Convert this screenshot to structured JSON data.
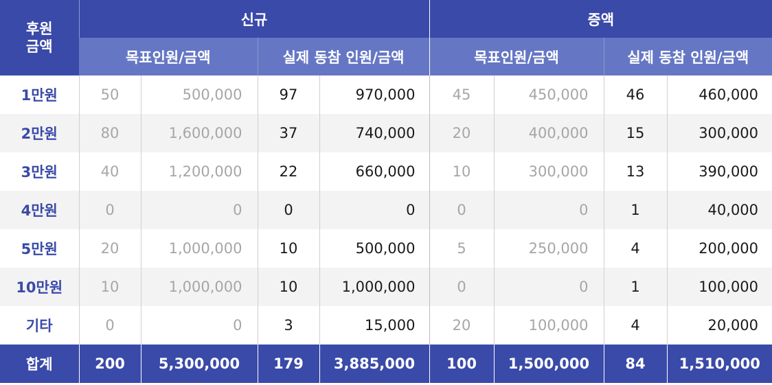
{
  "header": {
    "row_label": "후원\n금액",
    "row_label_line1": "후원",
    "row_label_line2": "금액",
    "group_new": "신규",
    "group_increase": "증액",
    "target_label": "목표인원/금액",
    "actual_label": "실제 동참 인원/금액"
  },
  "rows": [
    {
      "label": "1만원",
      "new_target_count": "50",
      "new_target_amount": "500,000",
      "new_actual_count": "97",
      "new_actual_amount": "970,000",
      "inc_target_count": "45",
      "inc_target_amount": "450,000",
      "inc_actual_count": "46",
      "inc_actual_amount": "460,000"
    },
    {
      "label": "2만원",
      "new_target_count": "80",
      "new_target_amount": "1,600,000",
      "new_actual_count": "37",
      "new_actual_amount": "740,000",
      "inc_target_count": "20",
      "inc_target_amount": "400,000",
      "inc_actual_count": "15",
      "inc_actual_amount": "300,000"
    },
    {
      "label": "3만원",
      "new_target_count": "40",
      "new_target_amount": "1,200,000",
      "new_actual_count": "22",
      "new_actual_amount": "660,000",
      "inc_target_count": "10",
      "inc_target_amount": "300,000",
      "inc_actual_count": "13",
      "inc_actual_amount": "390,000"
    },
    {
      "label": "4만원",
      "new_target_count": "0",
      "new_target_amount": "0",
      "new_actual_count": "0",
      "new_actual_amount": "0",
      "inc_target_count": "0",
      "inc_target_amount": "0",
      "inc_actual_count": "1",
      "inc_actual_amount": "40,000"
    },
    {
      "label": "5만원",
      "new_target_count": "20",
      "new_target_amount": "1,000,000",
      "new_actual_count": "10",
      "new_actual_amount": "500,000",
      "inc_target_count": "5",
      "inc_target_amount": "250,000",
      "inc_actual_count": "4",
      "inc_actual_amount": "200,000"
    },
    {
      "label": "10만원",
      "new_target_count": "10",
      "new_target_amount": "1,000,000",
      "new_actual_count": "10",
      "new_actual_amount": "1,000,000",
      "inc_target_count": "0",
      "inc_target_amount": "0",
      "inc_actual_count": "1",
      "inc_actual_amount": "100,000"
    },
    {
      "label": "기타",
      "new_target_count": "0",
      "new_target_amount": "0",
      "new_actual_count": "3",
      "new_actual_amount": "15,000",
      "inc_target_count": "20",
      "inc_target_amount": "100,000",
      "inc_actual_count": "4",
      "inc_actual_amount": "20,000"
    }
  ],
  "total": {
    "label": "합계",
    "new_target_count": "200",
    "new_target_amount": "5,300,000",
    "new_actual_count": "179",
    "new_actual_amount": "3,885,000",
    "inc_target_count": "100",
    "inc_target_amount": "1,500,000",
    "inc_actual_count": "84",
    "inc_actual_amount": "1,510,000"
  },
  "colors": {
    "header_dark": "#3a4aa8",
    "header_light": "#6577c4",
    "row_label": "#3a4aa8",
    "target_text": "#a6a6a6",
    "actual_text": "#1a1a1a",
    "stripe": "#f3f3f3"
  }
}
